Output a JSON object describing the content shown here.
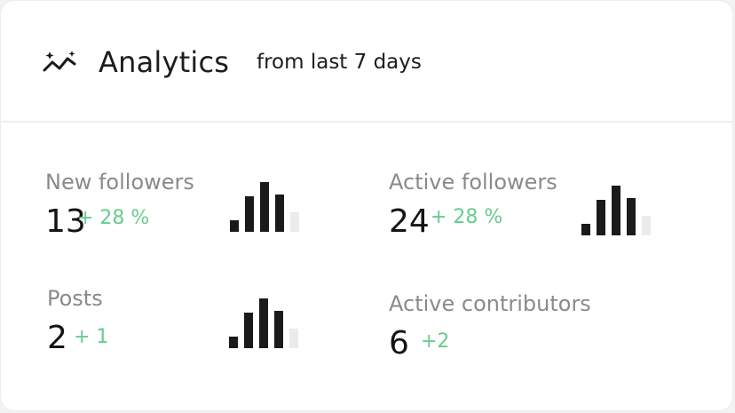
{
  "header": {
    "icon": "sparkle-trend-icon",
    "title": "Analytics",
    "subtitle": "from last 7 days"
  },
  "metrics": [
    {
      "label": "New followers",
      "value": "13",
      "change": "+ 28 %",
      "bars_icon": "bar-chart-icon"
    },
    {
      "label": "Active followers",
      "value": "24",
      "change": "+ 28 %",
      "bars_icon": "bar-chart-icon"
    },
    {
      "label": "Posts",
      "value": "2",
      "change": "+ 1",
      "bars_icon": "bar-chart-icon"
    },
    {
      "label": "Active contributors",
      "value": "6",
      "change": "+2"
    }
  ],
  "colors": {
    "positive": "#66cc8d",
    "bar": "#1a1a1a",
    "bar_muted": "#ebebeb",
    "label": "#8a8a8a"
  }
}
